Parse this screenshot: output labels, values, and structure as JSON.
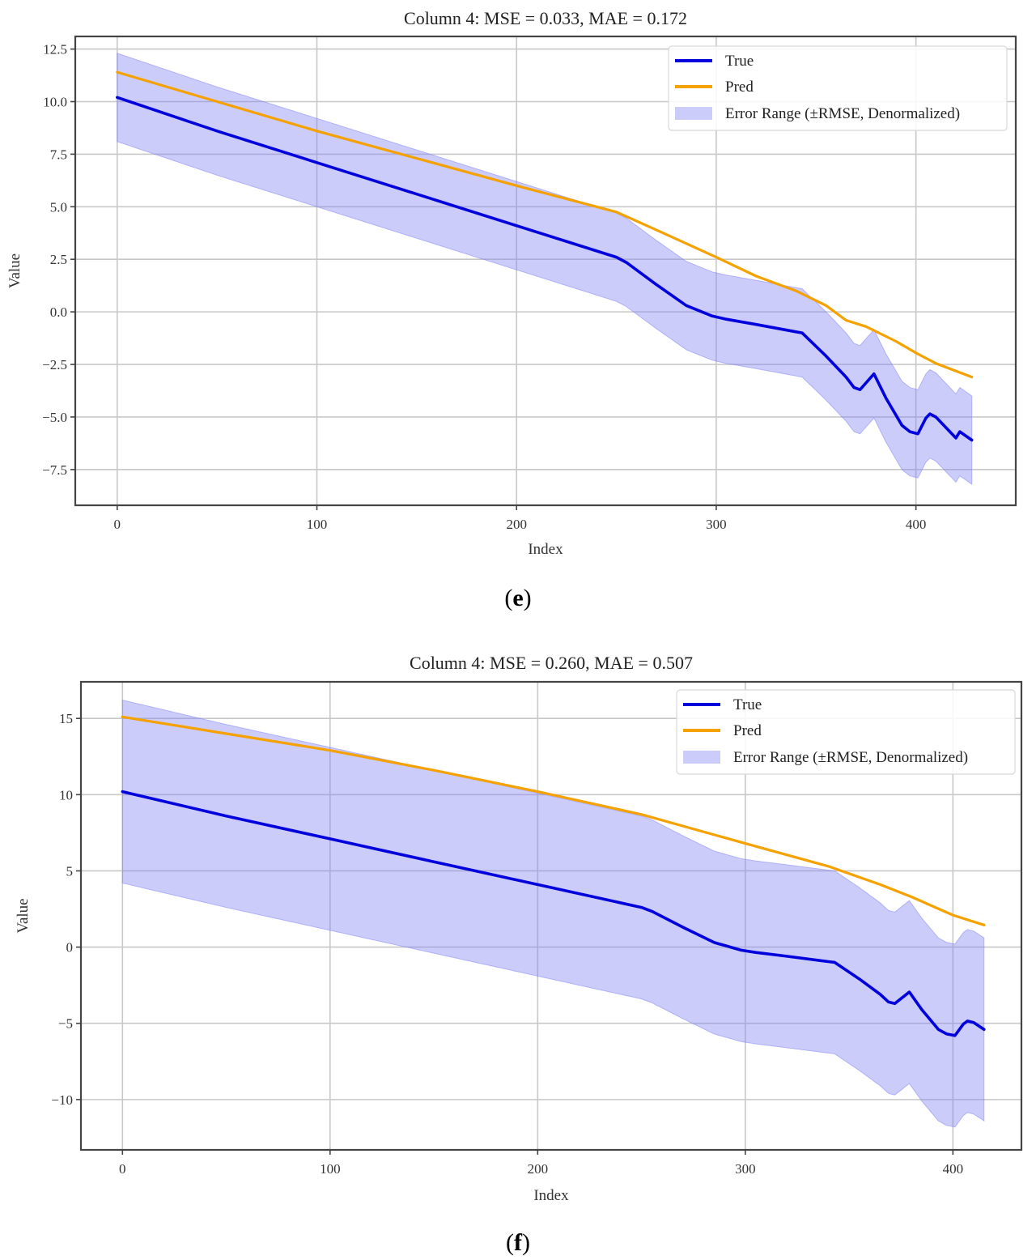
{
  "figure": {
    "panels": [
      {
        "caption_letter": "e"
      },
      {
        "caption_letter": "f"
      }
    ]
  },
  "chart_data": [
    {
      "type": "line",
      "title": "Column 4: MSE = 0.033, MAE = 0.172",
      "xlabel": "Index",
      "ylabel": "Value",
      "xlim": [
        -21,
        450
      ],
      "ylim": [
        -9.2,
        13.1
      ],
      "xticks": [
        0,
        100,
        200,
        300,
        400
      ],
      "xtick_labels": [
        "0",
        "100",
        "200",
        "300",
        "400"
      ],
      "yticks": [
        12.5,
        10.0,
        7.5,
        5.0,
        2.5,
        0.0,
        -2.5,
        -5.0,
        -7.5
      ],
      "ytick_labels": [
        "12.5",
        "10.0",
        "7.5",
        "5.0",
        "2.5",
        "0.0",
        "−2.5",
        "−5.0",
        "−7.5"
      ],
      "grid": true,
      "legend_position": "top-right",
      "legend": [
        "True",
        "Pred",
        "Error Range (±RMSE, Denormalized)"
      ],
      "colors": {
        "true": "#0000dd",
        "pred": "#f5a100",
        "band": "#8080f5"
      },
      "band_halfwidth": 2.1,
      "series": [
        {
          "name": "True",
          "x": [
            0,
            50,
            100,
            150,
            200,
            250,
            255,
            270,
            285,
            298,
            305,
            320,
            340,
            343,
            355,
            365,
            369,
            372,
            379,
            385,
            393,
            397,
            401,
            405,
            407,
            410,
            416,
            420,
            422,
            428
          ],
          "y": [
            10.2,
            8.6,
            7.1,
            5.6,
            4.1,
            2.6,
            2.35,
            1.3,
            0.3,
            -0.2,
            -0.35,
            -0.6,
            -0.95,
            -1.0,
            -2.1,
            -3.1,
            -3.6,
            -3.7,
            -2.95,
            -4.1,
            -5.4,
            -5.7,
            -5.8,
            -5.05,
            -4.85,
            -5.0,
            -5.6,
            -6.0,
            -5.7,
            -6.1
          ]
        },
        {
          "name": "Pred",
          "x": [
            0,
            50,
            100,
            150,
            200,
            250,
            270,
            300,
            320,
            340,
            355,
            365,
            375,
            390,
            400,
            410,
            428
          ],
          "y": [
            11.4,
            10.0,
            8.6,
            7.3,
            6.0,
            4.75,
            3.9,
            2.6,
            1.7,
            1.0,
            0.3,
            -0.4,
            -0.7,
            -1.4,
            -1.95,
            -2.45,
            -3.1
          ]
        }
      ]
    },
    {
      "type": "line",
      "title": "Column 4: MSE = 0.260, MAE = 0.507",
      "xlabel": "Index",
      "ylabel": "Value",
      "xlim": [
        -20,
        433
      ],
      "ylim": [
        -13.3,
        17.4
      ],
      "xticks": [
        0,
        100,
        200,
        300,
        400
      ],
      "xtick_labels": [
        "0",
        "100",
        "200",
        "300",
        "400"
      ],
      "yticks": [
        15,
        10,
        5,
        0,
        -5,
        -10
      ],
      "ytick_labels": [
        "15",
        "10",
        "5",
        "0",
        "−5",
        "−10"
      ],
      "grid": true,
      "legend_position": "top-right",
      "legend": [
        "True",
        "Pred",
        "Error Range (±RMSE, Denormalized)"
      ],
      "colors": {
        "true": "#0000dd",
        "pred": "#f5a100",
        "band": "#8080f5"
      },
      "band_halfwidth": 6.0,
      "series": [
        {
          "name": "True",
          "x": [
            0,
            50,
            100,
            150,
            200,
            250,
            255,
            270,
            285,
            298,
            305,
            320,
            340,
            343,
            355,
            365,
            369,
            372,
            379,
            385,
            393,
            397,
            401,
            405,
            407,
            410,
            415
          ],
          "y": [
            10.2,
            8.6,
            7.1,
            5.6,
            4.1,
            2.6,
            2.35,
            1.3,
            0.3,
            -0.2,
            -0.35,
            -0.6,
            -0.95,
            -1.0,
            -2.1,
            -3.1,
            -3.6,
            -3.7,
            -2.95,
            -4.1,
            -5.4,
            -5.7,
            -5.8,
            -5.05,
            -4.85,
            -4.95,
            -5.4
          ]
        },
        {
          "name": "Pred",
          "x": [
            0,
            50,
            100,
            150,
            200,
            250,
            300,
            340,
            365,
            380,
            400,
            415
          ],
          "y": [
            15.1,
            14.0,
            12.9,
            11.6,
            10.2,
            8.7,
            6.8,
            5.3,
            4.1,
            3.3,
            2.1,
            1.45
          ]
        }
      ]
    }
  ]
}
